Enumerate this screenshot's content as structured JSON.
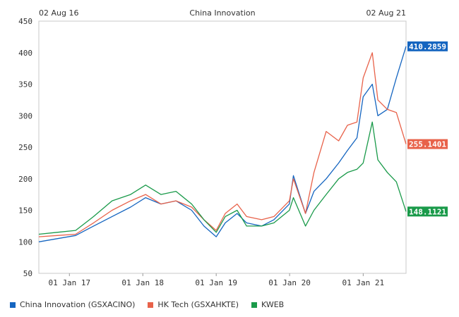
{
  "chart_data": {
    "type": "line",
    "title": "China Innovation",
    "start_label": "02 Aug 16",
    "end_label": "02 Aug 21",
    "ylim": [
      50,
      450
    ],
    "yticks": [
      50,
      100,
      150,
      200,
      250,
      300,
      350,
      400,
      450
    ],
    "x_range": [
      "2016-08-02",
      "2021-08-02"
    ],
    "xticks": [
      {
        "date": "2017-01-01",
        "label": "01 Jan 17"
      },
      {
        "date": "2018-01-01",
        "label": "01 Jan 18"
      },
      {
        "date": "2019-01-01",
        "label": "01 Jan 19"
      },
      {
        "date": "2020-01-01",
        "label": "01 Jan 20"
      },
      {
        "date": "2021-01-01",
        "label": "01 Jan 21"
      }
    ],
    "grid": false,
    "legend_position": "bottom-left",
    "series": [
      {
        "name": "China Innovation (GSXACINO)",
        "color": "#1565c0",
        "end_value": "410.2859",
        "x": [
          "2016-08-02",
          "2016-11-01",
          "2017-02-01",
          "2017-05-01",
          "2017-08-01",
          "2017-11-01",
          "2018-01-15",
          "2018-04-01",
          "2018-06-15",
          "2018-09-01",
          "2018-11-01",
          "2019-01-01",
          "2019-02-15",
          "2019-04-15",
          "2019-06-01",
          "2019-08-15",
          "2019-10-15",
          "2019-12-31",
          "2020-01-20",
          "2020-03-20",
          "2020-05-01",
          "2020-07-01",
          "2020-09-01",
          "2020-10-15",
          "2020-12-01",
          "2021-01-01",
          "2021-02-15",
          "2021-03-15",
          "2021-05-01",
          "2021-06-15",
          "2021-08-02"
        ],
        "values": [
          100,
          105,
          110,
          125,
          140,
          155,
          170,
          160,
          165,
          150,
          125,
          108,
          130,
          145,
          130,
          125,
          135,
          160,
          205,
          145,
          180,
          200,
          225,
          245,
          265,
          330,
          350,
          300,
          310,
          360,
          410
        ]
      },
      {
        "name": "HK Tech (GSXAHKTE)",
        "color": "#e8624a",
        "end_value": "255.1401",
        "x": [
          "2016-08-02",
          "2016-11-01",
          "2017-02-01",
          "2017-05-01",
          "2017-08-01",
          "2017-11-01",
          "2018-01-15",
          "2018-04-01",
          "2018-06-15",
          "2018-09-01",
          "2018-11-01",
          "2019-01-01",
          "2019-02-15",
          "2019-04-15",
          "2019-06-01",
          "2019-08-15",
          "2019-10-15",
          "2019-12-31",
          "2020-01-20",
          "2020-03-20",
          "2020-05-01",
          "2020-07-01",
          "2020-09-01",
          "2020-10-15",
          "2020-12-01",
          "2021-01-01",
          "2021-02-15",
          "2021-03-15",
          "2021-05-01",
          "2021-06-15",
          "2021-08-02"
        ],
        "values": [
          108,
          110,
          112,
          130,
          150,
          165,
          175,
          160,
          165,
          155,
          135,
          118,
          145,
          160,
          140,
          135,
          140,
          165,
          200,
          145,
          210,
          275,
          260,
          285,
          290,
          360,
          400,
          325,
          310,
          305,
          255
        ]
      },
      {
        "name": "KWEB",
        "color": "#1a9a4a",
        "end_value": "148.1121",
        "x": [
          "2016-08-02",
          "2016-11-01",
          "2017-02-01",
          "2017-05-01",
          "2017-08-01",
          "2017-11-01",
          "2018-01-15",
          "2018-04-01",
          "2018-06-15",
          "2018-09-01",
          "2018-11-01",
          "2019-01-01",
          "2019-02-15",
          "2019-04-15",
          "2019-06-01",
          "2019-08-15",
          "2019-10-15",
          "2019-12-31",
          "2020-01-20",
          "2020-03-20",
          "2020-05-01",
          "2020-07-01",
          "2020-09-01",
          "2020-10-15",
          "2020-12-01",
          "2021-01-01",
          "2021-02-15",
          "2021-03-15",
          "2021-05-01",
          "2021-06-15",
          "2021-08-02"
        ],
        "values": [
          112,
          115,
          118,
          140,
          165,
          175,
          190,
          175,
          180,
          160,
          135,
          115,
          140,
          150,
          125,
          125,
          130,
          150,
          170,
          125,
          150,
          175,
          200,
          210,
          215,
          225,
          290,
          230,
          210,
          195,
          148
        ]
      }
    ]
  }
}
